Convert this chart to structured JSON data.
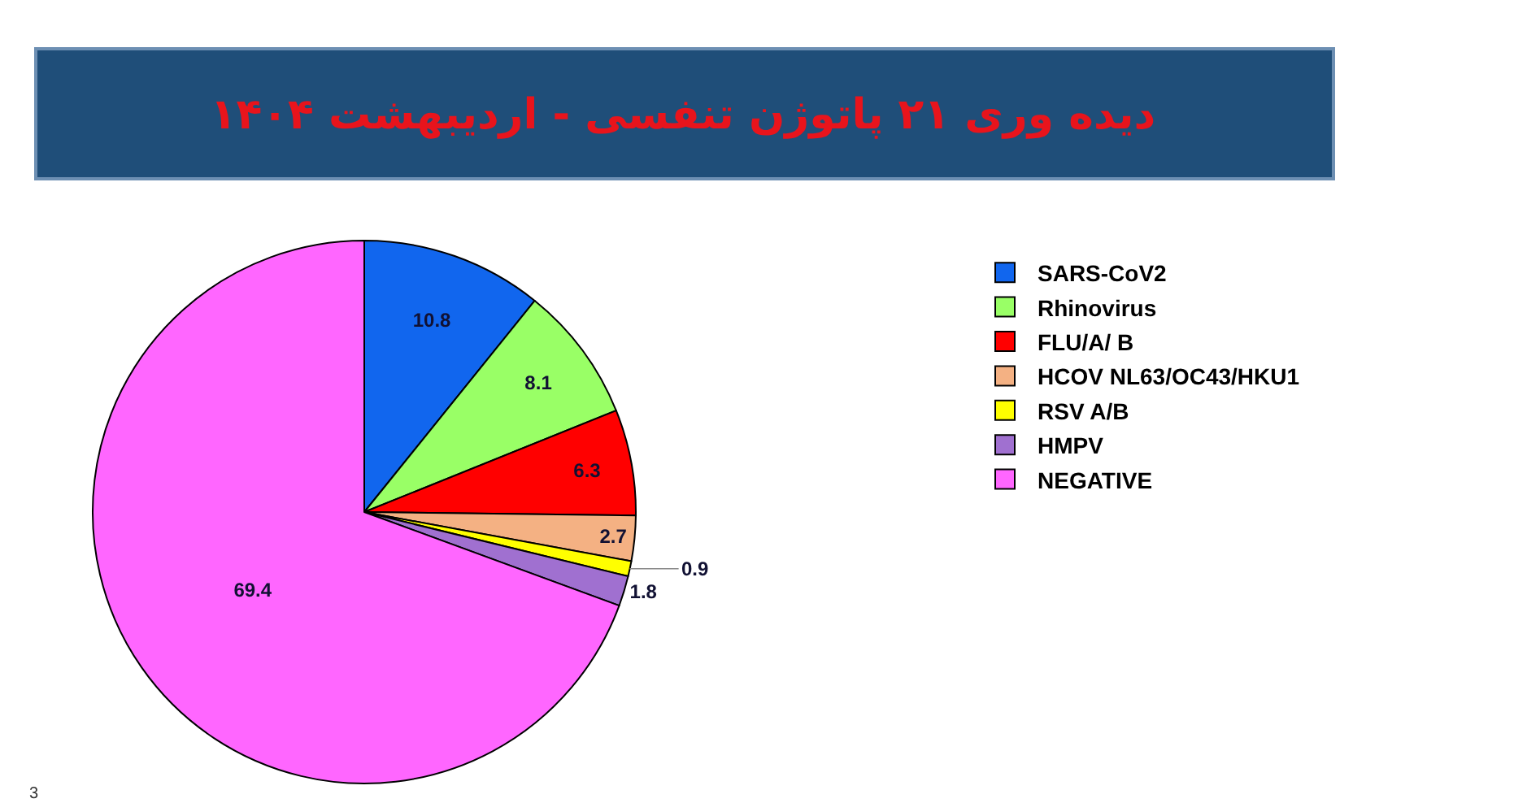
{
  "chart_data": {
    "type": "pie",
    "title": "دیده وری ۲۱ پاتوژن تنفسی - اردیبهشت ۱۴۰۴",
    "categories": [
      "SARS-CoV2",
      "Rhinovirus",
      "FLU/A/ B",
      "HCOV NL63/OC43/HKU1",
      "RSV A/B",
      "HMPV",
      "NEGATIVE"
    ],
    "values": [
      10.8,
      8.1,
      6.3,
      2.7,
      0.9,
      1.8,
      69.4
    ],
    "colors": [
      "#1166ee",
      "#99ff66",
      "#ff0000",
      "#f4b183",
      "#ffff00",
      "#a070d0",
      "#ff66ff"
    ],
    "data_labels": true,
    "legend": "right",
    "annotations": [
      "3"
    ]
  }
}
